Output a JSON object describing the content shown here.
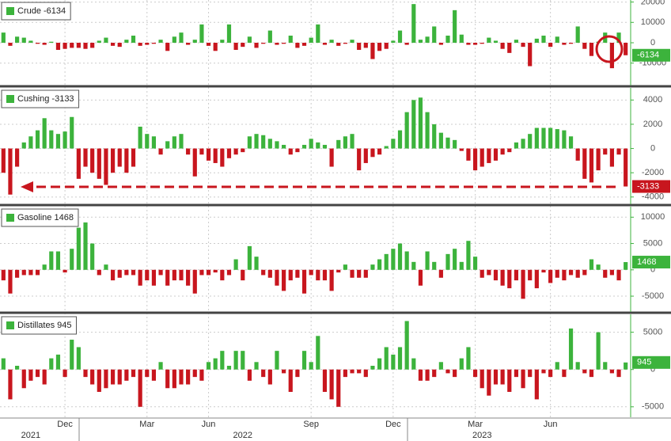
{
  "chart_data": [
    {
      "type": "bar",
      "series": [
        {
          "name": "Crude -6134",
          "color": "#3cb33c",
          "negative_color": "#c8161e",
          "values": [
            5000,
            -1500,
            3000,
            2500,
            1000,
            -500,
            -1000,
            500,
            -3500,
            -3000,
            -2500,
            -2500,
            -3000,
            -2500,
            1000,
            2500,
            -1500,
            -2000,
            1500,
            3500,
            -1500,
            -1000,
            -500,
            1500,
            -4000,
            3000,
            5000,
            -1000,
            1500,
            9000,
            -1500,
            -4000,
            1500,
            9000,
            -3500,
            -2000,
            3000,
            -2500,
            -500,
            6000,
            -1000,
            -500,
            3500,
            -2500,
            -1500,
            2500,
            9000,
            -1000,
            1500,
            -1500,
            -500,
            1500,
            -3500,
            -2500,
            -8000,
            -4000,
            -3000,
            1000,
            6000,
            -1000,
            19000,
            1500,
            3000,
            8000,
            -1000,
            3500,
            16000,
            4000,
            -1000,
            -1000,
            -500,
            2500,
            1000,
            -3000,
            -5000,
            1500,
            -2000,
            -11500,
            2000,
            3500,
            -2000,
            3000,
            -1000,
            -500,
            8000,
            -3000,
            -6500,
            500,
            5000,
            -12500,
            5000,
            -6134
          ]
        }
      ],
      "tag_color": "#3cb33c",
      "ylim": [
        -21000,
        21000
      ],
      "yticks": [
        -10000,
        0,
        10000,
        20000
      ]
    },
    {
      "type": "bar",
      "series": [
        {
          "name": "Cushing -3133",
          "color": "#3cb33c",
          "negative_color": "#c8161e",
          "values": [
            -2000,
            -3800,
            -1500,
            500,
            1000,
            1500,
            2500,
            1500,
            1200,
            1400,
            2600,
            -2500,
            -1500,
            -2000,
            -2500,
            -3000,
            -2000,
            -1500,
            -2000,
            -1500,
            1800,
            1200,
            1000,
            -500,
            600,
            1000,
            1200,
            -500,
            -2300,
            -500,
            -1000,
            -1200,
            -1500,
            -800,
            -500,
            -300,
            1000,
            1200,
            1100,
            800,
            600,
            300,
            -500,
            -300,
            300,
            800,
            500,
            300,
            -1500,
            700,
            1000,
            1200,
            -1800,
            -1200,
            -700,
            -500,
            200,
            800,
            1500,
            3000,
            4000,
            4200,
            3000,
            2000,
            1300,
            900,
            700,
            -200,
            -1000,
            -1800,
            -1500,
            -1200,
            -1000,
            -500,
            -300,
            500,
            800,
            1200,
            1700,
            1700,
            1700,
            1600,
            1500,
            1000,
            -1000,
            -2500,
            -2800,
            -1800,
            -500,
            -1500,
            -500,
            -3133
          ]
        }
      ],
      "tag_color": "#c8161e",
      "ylim": [
        -4600,
        5000
      ],
      "yticks": [
        -4000,
        -2000,
        0,
        2000,
        4000
      ]
    },
    {
      "type": "bar",
      "series": [
        {
          "name": "Gasoline 1468",
          "color": "#3cb33c",
          "negative_color": "#c8161e",
          "values": [
            -2000,
            -4500,
            -1500,
            -1000,
            -1000,
            -1000,
            1000,
            3500,
            3500,
            -500,
            4000,
            8000,
            9000,
            5000,
            -1000,
            1000,
            -2000,
            -1500,
            -1000,
            -1000,
            -3000,
            -2000,
            -3000,
            -1000,
            -3000,
            -2000,
            -2000,
            -3000,
            -4500,
            -1000,
            -1000,
            -500,
            -2000,
            -1000,
            2000,
            -2000,
            4500,
            2500,
            -1000,
            -1500,
            -3000,
            -4000,
            -2000,
            -1500,
            -4500,
            -1000,
            -2000,
            -2000,
            -4000,
            -500,
            1000,
            -1500,
            -1500,
            -1500,
            1000,
            2000,
            3000,
            4000,
            5000,
            3500,
            1500,
            -3000,
            3500,
            1500,
            -1500,
            3000,
            4000,
            1500,
            5500,
            2500,
            -1500,
            -1000,
            -2000,
            -3000,
            -3500,
            -2000,
            -5500,
            -2000,
            -3500,
            -500,
            -2500,
            -1500,
            -2000,
            -1000,
            -1500,
            -1000,
            2000,
            1000,
            -1500,
            -1000,
            -2000,
            1468
          ]
        }
      ],
      "tag_color": "#3cb33c",
      "ylim": [
        -8000,
        12000
      ],
      "yticks": [
        -5000,
        0,
        5000,
        10000
      ]
    },
    {
      "type": "bar",
      "series": [
        {
          "name": "Distillates 945",
          "color": "#3cb33c",
          "negative_color": "#c8161e",
          "values": [
            1500,
            -4000,
            500,
            -2500,
            -1500,
            -1000,
            -2000,
            1500,
            2000,
            -1000,
            4000,
            3000,
            -1000,
            -2000,
            -3000,
            -2500,
            -2000,
            -2000,
            -1500,
            -1000,
            -5000,
            -1000,
            -1500,
            1000,
            -2500,
            -2500,
            -2000,
            -2000,
            -1000,
            -1500,
            1000,
            1500,
            2500,
            500,
            2500,
            2500,
            -1500,
            1000,
            -1000,
            -2000,
            2500,
            -500,
            -3000,
            -1000,
            2500,
            1000,
            4500,
            -3000,
            -4000,
            -5000,
            -1000,
            -500,
            -500,
            -1000,
            500,
            1500,
            3000,
            2000,
            3000,
            6500,
            1500,
            -1500,
            -1500,
            -1000,
            1000,
            -500,
            -1000,
            1500,
            3000,
            -1000,
            -2500,
            -3500,
            -2000,
            -2000,
            -3000,
            -1000,
            -2500,
            -1000,
            -4000,
            -500,
            -1000,
            1000,
            -1000,
            5500,
            1000,
            -500,
            -1000,
            5000,
            1000,
            -500,
            -1000,
            945
          ]
        }
      ],
      "tag_color": "#3cb33c",
      "ylim": [
        -6400,
        7400
      ],
      "yticks": [
        -5000,
        0,
        5000
      ],
      "categories": [
        null,
        null,
        null,
        null,
        null,
        null,
        null,
        null,
        null,
        "Dec",
        null,
        null,
        null,
        null,
        null,
        null,
        null,
        null,
        null,
        null,
        null,
        "Mar",
        null,
        null,
        null,
        null,
        null,
        null,
        null,
        null,
        "Jun",
        null,
        null,
        null,
        null,
        null,
        null,
        null,
        null,
        null,
        null,
        null,
        null,
        null,
        null,
        "Sep",
        null,
        null,
        null,
        null,
        null,
        null,
        null,
        null,
        null,
        null,
        null,
        "Dec",
        null,
        null,
        null,
        null,
        null,
        null,
        null,
        null,
        null,
        null,
        null,
        "Mar",
        null,
        null,
        null,
        null,
        null,
        null,
        null,
        null,
        null,
        null,
        "Jun",
        null,
        null,
        null,
        null,
        null,
        null,
        null,
        null,
        null,
        null,
        null
      ],
      "year_categories": [
        null,
        null,
        null,
        null,
        "2021",
        null,
        null,
        null,
        null,
        null,
        null,
        null,
        null,
        null,
        null,
        null,
        null,
        null,
        null,
        null,
        null,
        null,
        null,
        null,
        null,
        null,
        null,
        null,
        null,
        null,
        null,
        null,
        null,
        null,
        null,
        "2022",
        null,
        null,
        null,
        null,
        null,
        null,
        null,
        null,
        null,
        null,
        null,
        null,
        null,
        null,
        null,
        null,
        null,
        null,
        null,
        null,
        null,
        null,
        null,
        null,
        null,
        null,
        null,
        null,
        null,
        null,
        null,
        null,
        null,
        null,
        "2023",
        null,
        null,
        null,
        null,
        null,
        null,
        null,
        null,
        null,
        null,
        null,
        null,
        null,
        null,
        null,
        null,
        null,
        null,
        null,
        null,
        null
      ]
    }
  ]
}
